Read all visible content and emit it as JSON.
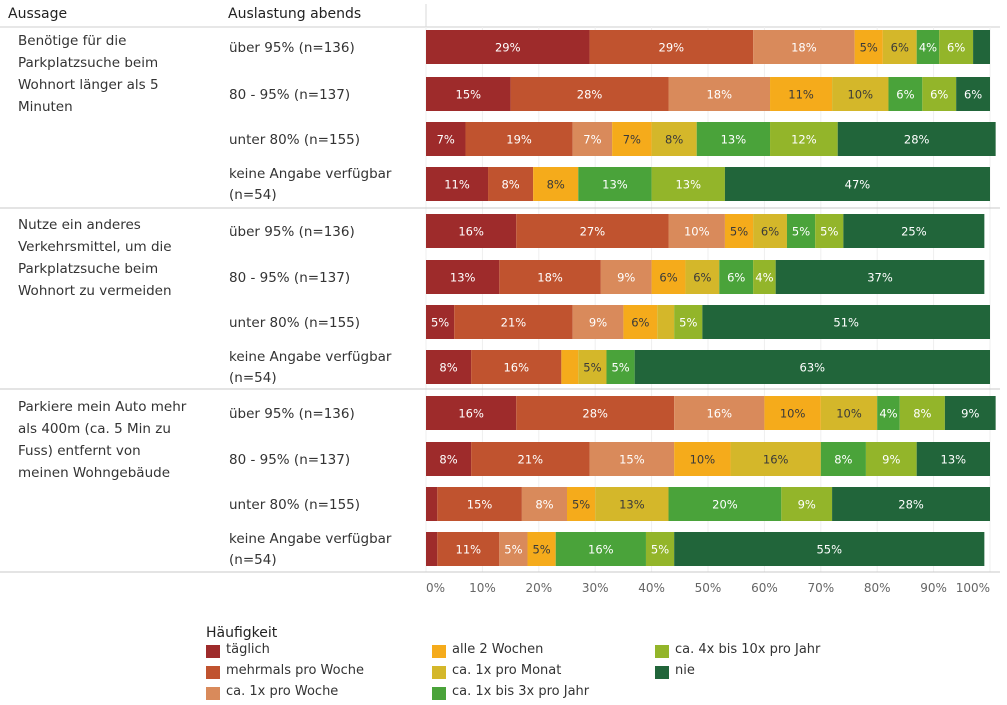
{
  "headers": {
    "aussage": "Aussage",
    "auslastung": "Auslastung abends"
  },
  "colors": {
    "täglich": "#9e2b2b",
    "mehrmals pro Woche": "#c0532f",
    "ca. 1x pro Woche": "#d98a5b",
    "alle 2 Wochen": "#f5ab1b",
    "ca. 1x pro Monat": "#d4b72a",
    "ca. 1x bis 3x pro Jahr": "#4aa33a",
    "ca. 4x bis 10x pro Jahr": "#93b52a",
    "nie": "#21653a"
  },
  "legend": {
    "title": "Häufigkeit",
    "items": [
      "täglich",
      "mehrmals pro Woche",
      "ca. 1x pro Woche",
      "alle 2 Wochen",
      "ca. 1x pro Monat",
      "ca. 1x bis 3x pro Jahr",
      "ca. 4x bis 10x pro Jahr",
      "nie"
    ]
  },
  "chart_data": {
    "type": "bar",
    "orientation": "horizontal",
    "stacked": true,
    "percent_scale": true,
    "xlim": [
      0,
      100
    ],
    "x_ticks": [
      "0%",
      "10%",
      "20%",
      "30%",
      "40%",
      "50%",
      "60%",
      "70%",
      "80%",
      "90%",
      "100%"
    ],
    "series_names": [
      "täglich",
      "mehrmals pro Woche",
      "ca. 1x pro Woche",
      "alle 2 Wochen",
      "ca. 1x pro Monat",
      "ca. 1x bis 3x pro Jahr",
      "ca. 4x bis 10x pro Jahr",
      "nie"
    ],
    "groups": [
      {
        "aussage": "Benötige für die Parkplatzsuche beim Wohnort länger als 5 Minuten",
        "rows": [
          {
            "label": "über 95% (n=136)",
            "values": [
              29,
              29,
              18,
              5,
              6,
              4,
              6,
              3
            ]
          },
          {
            "label": "80 - 95% (n=137)",
            "values": [
              15,
              28,
              18,
              11,
              10,
              6,
              6,
              6
            ]
          },
          {
            "label": "unter 80% (n=155)",
            "values": [
              7,
              19,
              7,
              7,
              8,
              13,
              12,
              28
            ]
          },
          {
            "label": "keine Angabe verfügbar (n=54)",
            "values": [
              11,
              8,
              0,
              8,
              0,
              13,
              13,
              47
            ]
          }
        ]
      },
      {
        "aussage": "Nutze ein anderes Verkehrsmittel, um die Parkplatzsuche beim Wohnort zu vermeiden",
        "rows": [
          {
            "label": "über 95% (n=136)",
            "values": [
              16,
              27,
              10,
              5,
              6,
              5,
              5,
              25
            ]
          },
          {
            "label": "80 - 95% (n=137)",
            "values": [
              13,
              18,
              9,
              6,
              6,
              6,
              4,
              37
            ]
          },
          {
            "label": "unter 80% (n=155)",
            "values": [
              5,
              21,
              9,
              6,
              3,
              0,
              5,
              51
            ]
          },
          {
            "label": "keine Angabe verfügbar (n=54)",
            "values": [
              8,
              16,
              0,
              3,
              5,
              5,
              0,
              63
            ]
          }
        ]
      },
      {
        "aussage": "Parkiere mein Auto mehr als 400m (ca. 5 Min zu Fuss) entfernt von meinen Wohngebäude",
        "rows": [
          {
            "label": "über 95% (n=136)",
            "values": [
              16,
              28,
              16,
              10,
              10,
              4,
              8,
              9
            ]
          },
          {
            "label": "80 - 95% (n=137)",
            "values": [
              8,
              21,
              15,
              10,
              16,
              8,
              9,
              13
            ]
          },
          {
            "label": "unter 80% (n=155)",
            "values": [
              2,
              15,
              8,
              5,
              13,
              20,
              9,
              28
            ]
          },
          {
            "label": "keine Angabe verfügbar (n=54)",
            "values": [
              2,
              11,
              5,
              5,
              0,
              16,
              5,
              55
            ]
          }
        ]
      }
    ]
  }
}
